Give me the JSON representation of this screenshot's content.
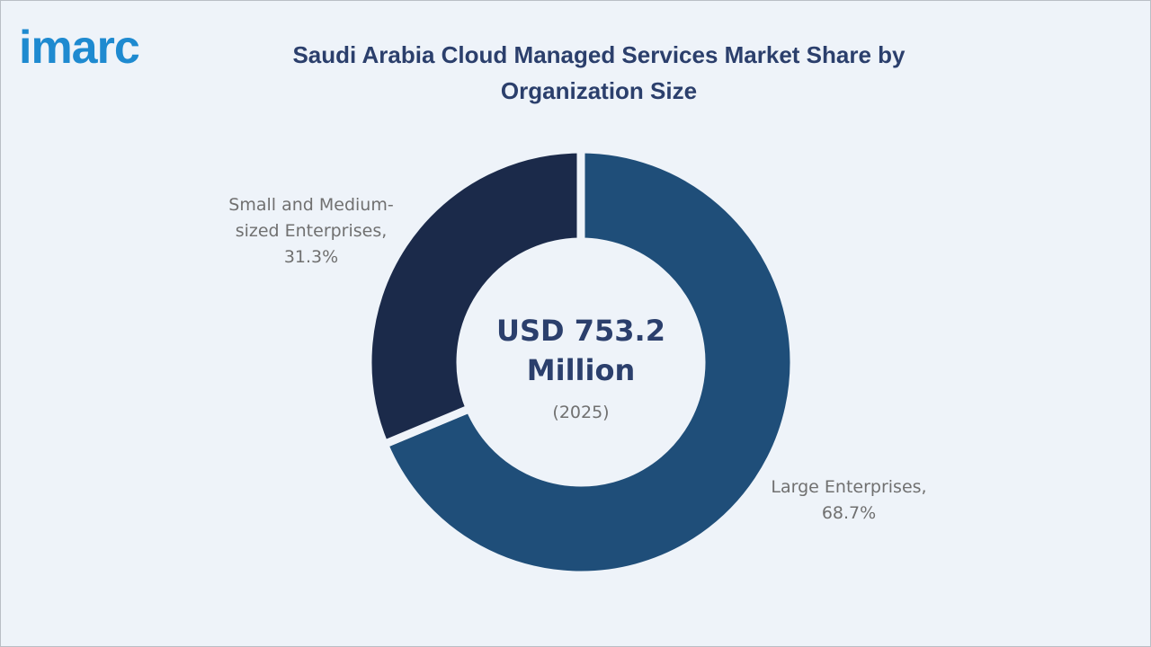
{
  "logo": "imarc",
  "chart_data": {
    "type": "pie",
    "title": "Saudi Arabia Cloud Managed Services Market Share by Organization Size",
    "categories": [
      "Large Enterprises,",
      "Small and Medium-sized Enterprises,"
    ],
    "values": [
      68.7,
      31.3
    ],
    "value_labels": [
      "68.7%",
      "31.3%"
    ],
    "colors": [
      "#1f4e79",
      "#1b2a4a"
    ],
    "donut": true,
    "center_label": "USD 753.2 Million",
    "center_sublabel": "(2025)"
  }
}
